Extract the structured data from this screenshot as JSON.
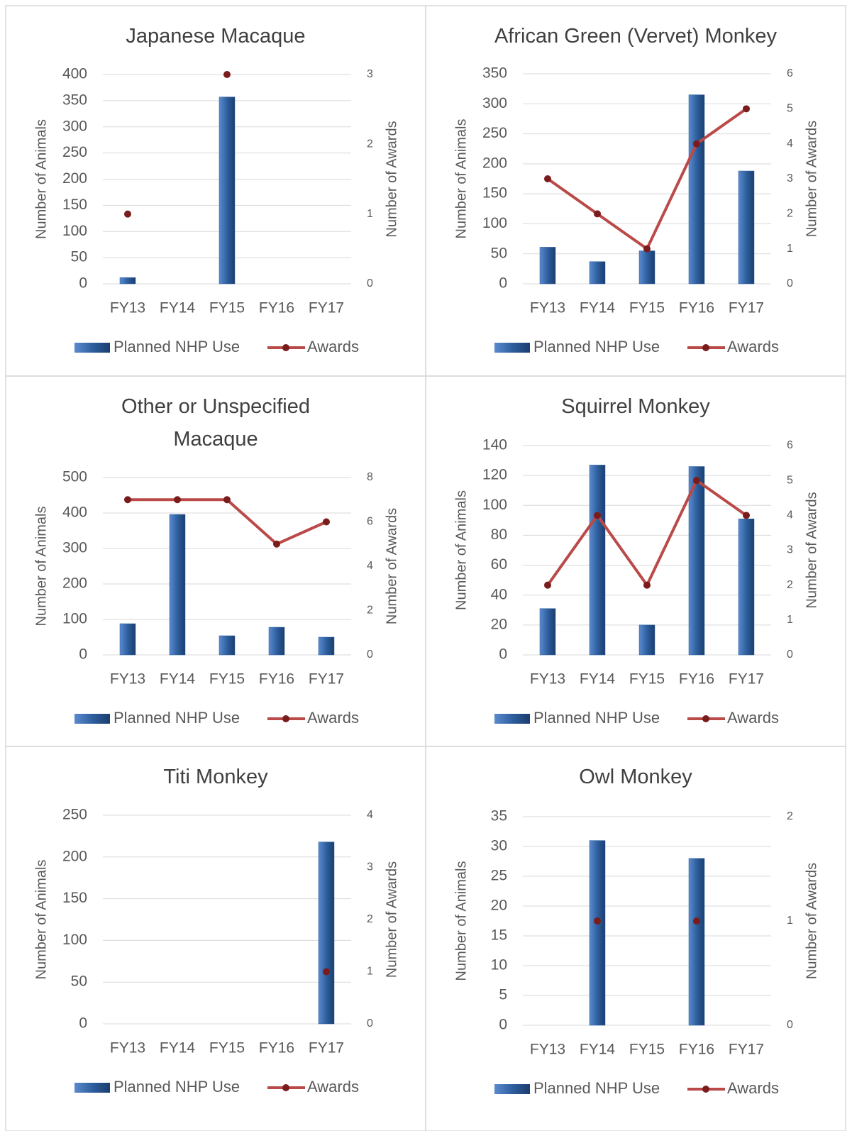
{
  "chart_data": [
    {
      "type": "combo",
      "title": "Japanese Macaque",
      "categories": [
        "FY13",
        "FY14",
        "FY15",
        "FY16",
        "FY17"
      ],
      "y_label": "Number of Animals",
      "y2_label": "Number of Awards",
      "ylim": [
        0,
        400
      ],
      "yticks": [
        0,
        50,
        100,
        150,
        200,
        250,
        300,
        350,
        400
      ],
      "y2lim": [
        0,
        3
      ],
      "y2ticks": [
        0,
        1,
        2,
        3
      ],
      "grid": true,
      "series": [
        {
          "name": "Planned NHP Use",
          "type": "bar",
          "color": "#2e5f9e",
          "values": [
            12,
            0,
            357,
            null,
            null
          ]
        },
        {
          "name": "Awards",
          "type": "line",
          "axis": "y2",
          "color": "#b94a48",
          "values": [
            1,
            null,
            3,
            null,
            null
          ]
        }
      ]
    },
    {
      "type": "combo",
      "title": "African Green (Vervet) Monkey",
      "categories": [
        "FY13",
        "FY14",
        "FY15",
        "FY16",
        "FY17"
      ],
      "y_label": "Number of Animals",
      "y2_label": "Number of Awards",
      "ylim": [
        0,
        350
      ],
      "yticks": [
        0,
        50,
        100,
        150,
        200,
        250,
        300,
        350
      ],
      "y2lim": [
        0,
        6
      ],
      "y2ticks": [
        0,
        1,
        2,
        3,
        4,
        5,
        6
      ],
      "grid": true,
      "series": [
        {
          "name": "Planned NHP Use",
          "type": "bar",
          "color": "#2e5f9e",
          "values": [
            61,
            37,
            55,
            315,
            188
          ]
        },
        {
          "name": "Awards",
          "type": "line",
          "axis": "y2",
          "color": "#b94a48",
          "values": [
            3,
            2,
            1,
            4,
            5
          ]
        }
      ]
    },
    {
      "type": "combo",
      "title": "Other or Unspecified Macaque",
      "categories": [
        "FY13",
        "FY14",
        "FY15",
        "FY16",
        "FY17"
      ],
      "y_label": "Number of Animals",
      "y2_label": "Number of Awards",
      "ylim": [
        0,
        500
      ],
      "yticks": [
        0,
        100,
        200,
        300,
        400,
        500
      ],
      "y2lim": [
        0,
        8
      ],
      "y2ticks": [
        0,
        2,
        4,
        6,
        8
      ],
      "grid": true,
      "series": [
        {
          "name": "Planned NHP Use",
          "type": "bar",
          "color": "#2e5f9e",
          "values": [
            88,
            396,
            54,
            78,
            50
          ]
        },
        {
          "name": "Awards",
          "type": "line",
          "axis": "y2",
          "color": "#b94a48",
          "values": [
            7,
            7,
            7,
            5,
            6
          ]
        }
      ]
    },
    {
      "type": "combo",
      "title": "Squirrel Monkey",
      "categories": [
        "FY13",
        "FY14",
        "FY15",
        "FY16",
        "FY17"
      ],
      "y_label": "Number of Animals",
      "y2_label": "Number of Awards",
      "ylim": [
        0,
        140
      ],
      "yticks": [
        0,
        20,
        40,
        60,
        80,
        100,
        120,
        140
      ],
      "y2lim": [
        0,
        6
      ],
      "y2ticks": [
        0,
        1,
        2,
        3,
        4,
        5,
        6
      ],
      "grid": true,
      "series": [
        {
          "name": "Planned NHP Use",
          "type": "bar",
          "color": "#2e5f9e",
          "values": [
            31,
            127,
            20,
            126,
            91
          ]
        },
        {
          "name": "Awards",
          "type": "line",
          "axis": "y2",
          "color": "#b94a48",
          "values": [
            2,
            4,
            2,
            5,
            4
          ]
        }
      ]
    },
    {
      "type": "combo",
      "title": "Titi Monkey",
      "categories": [
        "FY13",
        "FY14",
        "FY15",
        "FY16",
        "FY17"
      ],
      "y_label": "Number of Animals",
      "y2_label": "Number of Awards",
      "ylim": [
        0,
        250
      ],
      "yticks": [
        0,
        50,
        100,
        150,
        200,
        250
      ],
      "y2lim": [
        0,
        4
      ],
      "y2ticks": [
        0,
        1,
        2,
        3,
        4
      ],
      "grid": true,
      "series": [
        {
          "name": "Planned NHP Use",
          "type": "bar",
          "color": "#2e5f9e",
          "values": [
            null,
            null,
            null,
            null,
            218
          ]
        },
        {
          "name": "Awards",
          "type": "line",
          "axis": "y2",
          "color": "#b94a48",
          "values": [
            null,
            null,
            null,
            null,
            1
          ]
        }
      ]
    },
    {
      "type": "combo",
      "title": "Owl Monkey",
      "categories": [
        "FY13",
        "FY14",
        "FY15",
        "FY16",
        "FY17"
      ],
      "y_label": "Number of Animals",
      "y2_label": "Number of Awards",
      "ylim": [
        0,
        35
      ],
      "yticks": [
        0,
        5,
        10,
        15,
        20,
        25,
        30,
        35
      ],
      "y2lim": [
        0,
        2
      ],
      "y2ticks": [
        0,
        1,
        2
      ],
      "grid": true,
      "series": [
        {
          "name": "Planned NHP Use",
          "type": "bar",
          "color": "#2e5f9e",
          "values": [
            null,
            31,
            null,
            28,
            null
          ]
        },
        {
          "name": "Awards",
          "type": "line",
          "axis": "y2",
          "color": "#b94a48",
          "values": [
            null,
            1,
            null,
            1,
            null
          ]
        }
      ]
    }
  ]
}
